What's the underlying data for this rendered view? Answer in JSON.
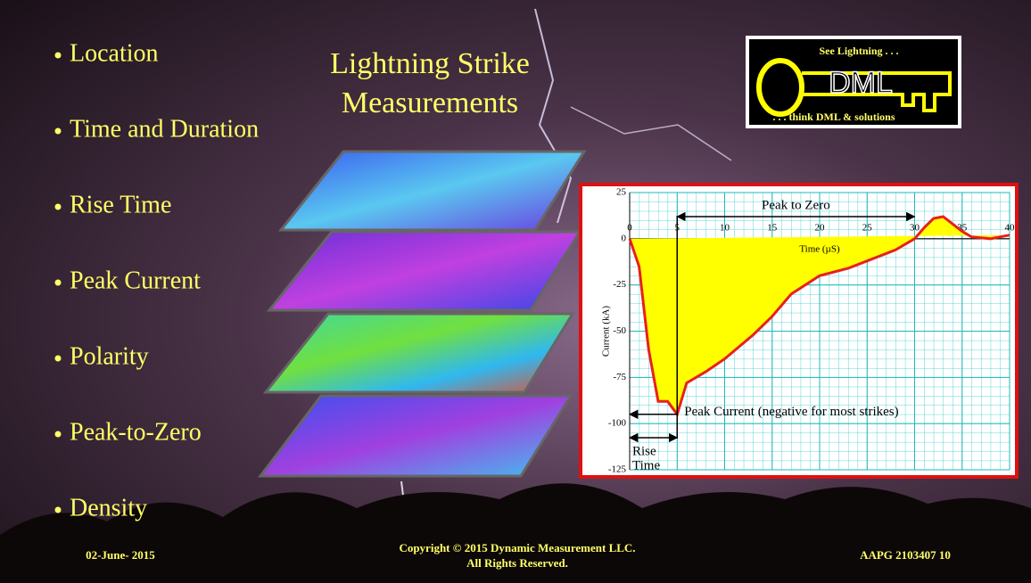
{
  "bullets": [
    "Location",
    "Time and Duration",
    "Rise Time",
    "Peak Current",
    "Polarity",
    "Peak-to-Zero",
    "Density"
  ],
  "title_lines": [
    "Lightning Strike",
    "Measurements"
  ],
  "logo": {
    "tagline_top": "See Lightning . . .",
    "name": "DML",
    "tagline_bottom": ". . . think DML & solutions"
  },
  "chart_data": {
    "type": "area",
    "x": [
      0,
      1,
      2,
      3,
      4,
      5,
      6,
      8,
      10,
      13,
      15,
      17,
      20,
      23,
      25,
      28,
      30,
      31,
      32,
      33,
      34,
      35,
      36,
      38,
      40
    ],
    "values": [
      0,
      -15,
      -60,
      -88,
      -88,
      -95,
      -78,
      -72,
      -65,
      -52,
      -42,
      -30,
      -20,
      -16,
      -12,
      -6,
      0,
      6,
      11,
      12,
      8,
      4,
      1,
      0,
      2
    ],
    "color": "#e8201c",
    "fill_color": "#ffff00",
    "xlim": [
      0,
      40
    ],
    "xticks": [
      0,
      5,
      10,
      15,
      20,
      25,
      30,
      35,
      40
    ],
    "ylim": [
      -125,
      25
    ],
    "yticks": [
      25,
      0,
      -25,
      -50,
      -75,
      -100,
      -125
    ],
    "grid": true,
    "xlabel": "Time (µS)",
    "ylabel": "Current (kA)",
    "annotations": {
      "peak_to_zero": "Peak to Zero",
      "peak_current": "Peak Current (negative for most strikes)",
      "rise_time": [
        "Rise",
        "Time"
      ]
    }
  },
  "footer": {
    "date": "02-June- 2015",
    "copyright": "Copyright © 2015 Dynamic Measurement LLC.",
    "rights": "All Rights Reserved.",
    "reference": "AAPG 2103407 10"
  }
}
